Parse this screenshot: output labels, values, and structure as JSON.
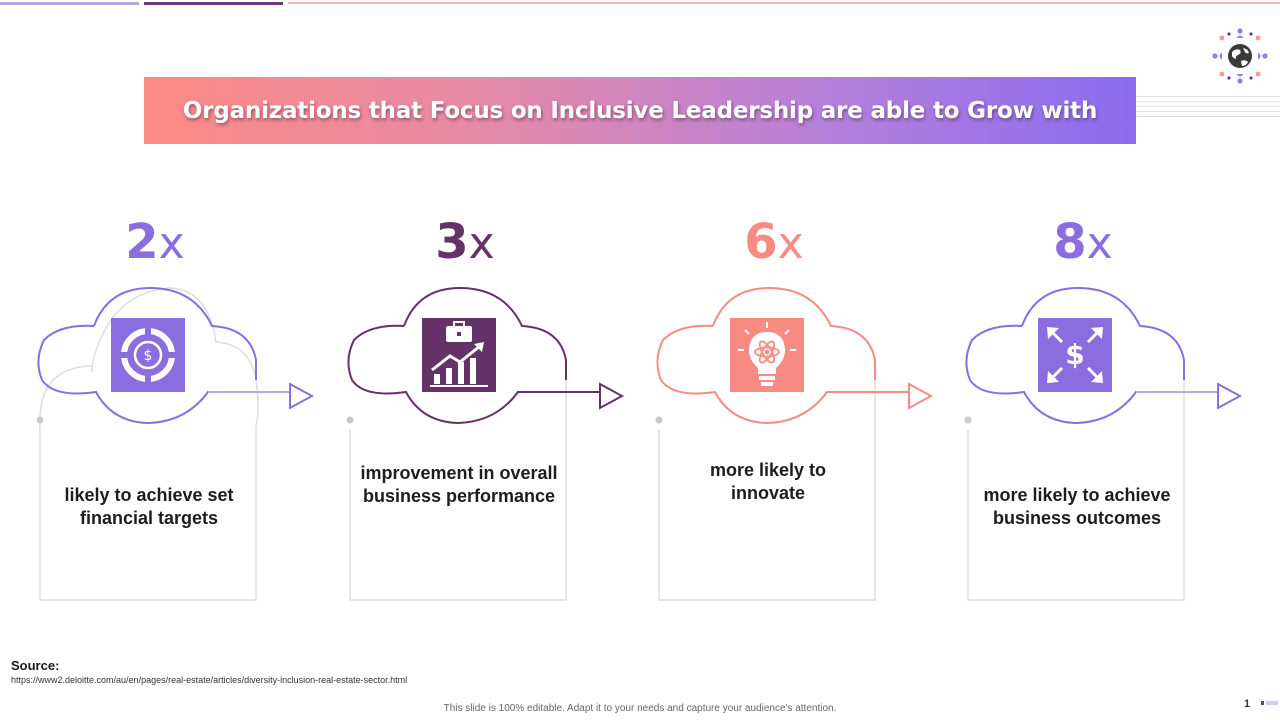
{
  "slide": {
    "title": "Organizations that Focus on Inclusive Leadership are able to Grow with",
    "colors": {
      "purple_light": "#8a6ddf",
      "purple_dark": "#643268",
      "coral": "#f78b82"
    },
    "cards": [
      {
        "number": "2",
        "suffix": "x",
        "description": "likely to achieve set financial targets",
        "icon": "target-dollar-icon",
        "color": "#8a6ddf"
      },
      {
        "number": "3",
        "suffix": "x",
        "description": "improvement in overall business performance",
        "icon": "briefcase-growth-chart-icon",
        "color": "#643268"
      },
      {
        "number": "6",
        "suffix": "x",
        "description": "more likely to innovate",
        "icon": "lightbulb-atom-icon",
        "color": "#f78b82"
      },
      {
        "number": "8",
        "suffix": "x",
        "description": "more likely to achieve business outcomes",
        "icon": "dollar-expand-arrows-icon",
        "color": "#8a6ddf"
      }
    ],
    "source": {
      "label": "Source:",
      "url": "https://www2.deloitte.com/au/en/pages/real-estate/articles/diversity-inclusion-real-estate-sector.html"
    },
    "footer_note": "This slide is 100% editable. Adapt it to your needs and capture your audience's attention.",
    "page_number": "1",
    "logo_icon": "globe-people-network-icon"
  }
}
